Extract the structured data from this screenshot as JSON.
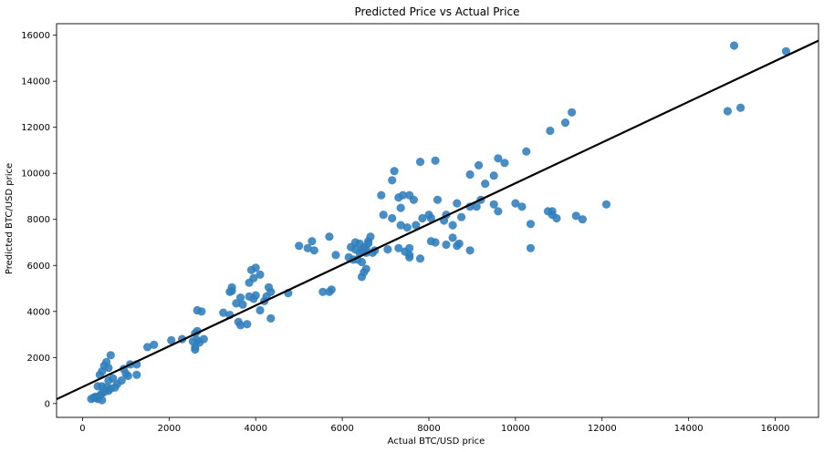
{
  "chart_data": {
    "type": "scatter",
    "title": "Predicted Price vs Actual Price",
    "xlabel": "Actual BTC/USD price",
    "ylabel": "Predicted BTC/USD price",
    "xlim": [
      -600,
      17000
    ],
    "ylim": [
      -600,
      16500
    ],
    "xticks": [
      0,
      2000,
      4000,
      6000,
      8000,
      10000,
      12000,
      14000,
      16000
    ],
    "yticks": [
      0,
      2000,
      4000,
      6000,
      8000,
      10000,
      12000,
      14000,
      16000
    ],
    "grid": false,
    "point_color": "#2f7ebc",
    "line_color": "#000000",
    "regression_line": {
      "slope": 0.885,
      "intercept": 720
    },
    "points": [
      [
        16250,
        15300
      ],
      [
        15050,
        15550
      ],
      [
        15200,
        12850
      ],
      [
        14900,
        12700
      ],
      [
        11300,
        12650
      ],
      [
        11150,
        12200
      ],
      [
        10800,
        11850
      ],
      [
        10250,
        10950
      ],
      [
        9600,
        10650
      ],
      [
        9750,
        10450
      ],
      [
        9150,
        10350
      ],
      [
        8950,
        9950
      ],
      [
        9500,
        9900
      ],
      [
        9300,
        9550
      ],
      [
        7800,
        10500
      ],
      [
        8150,
        10550
      ],
      [
        7200,
        10100
      ],
      [
        7150,
        9700
      ],
      [
        7400,
        9050
      ],
      [
        7550,
        9050
      ],
      [
        6900,
        9050
      ],
      [
        7300,
        8950
      ],
      [
        7650,
        8850
      ],
      [
        8200,
        8850
      ],
      [
        8650,
        8700
      ],
      [
        9200,
        8850
      ],
      [
        9100,
        8550
      ],
      [
        8950,
        8550
      ],
      [
        9500,
        8650
      ],
      [
        10000,
        8700
      ],
      [
        10150,
        8550
      ],
      [
        12100,
        8650
      ],
      [
        10750,
        8350
      ],
      [
        10850,
        8350
      ],
      [
        9600,
        8350
      ],
      [
        8400,
        8200
      ],
      [
        8750,
        8100
      ],
      [
        6950,
        8200
      ],
      [
        7150,
        8050
      ],
      [
        7350,
        8500
      ],
      [
        7850,
        8050
      ],
      [
        8000,
        8200
      ],
      [
        8350,
        7950
      ],
      [
        8050,
        8050
      ],
      [
        8550,
        7750
      ],
      [
        7700,
        7750
      ],
      [
        7500,
        7650
      ],
      [
        7350,
        7750
      ],
      [
        11400,
        8150
      ],
      [
        11550,
        8000
      ],
      [
        10950,
        8050
      ],
      [
        10850,
        8200
      ],
      [
        10350,
        7800
      ],
      [
        5700,
        7250
      ],
      [
        6650,
        7250
      ],
      [
        5300,
        7050
      ],
      [
        5200,
        6750
      ],
      [
        5000,
        6850
      ],
      [
        5350,
        6650
      ],
      [
        6300,
        7000
      ],
      [
        6400,
        6950
      ],
      [
        6500,
        6800
      ],
      [
        6200,
        6800
      ],
      [
        6300,
        6700
      ],
      [
        6450,
        6650
      ],
      [
        6550,
        6550
      ],
      [
        6600,
        6950
      ],
      [
        6750,
        6650
      ],
      [
        7050,
        6700
      ],
      [
        7300,
        6750
      ],
      [
        7450,
        6600
      ],
      [
        7550,
        6450
      ],
      [
        7550,
        6350
      ],
      [
        7800,
        6300
      ],
      [
        8050,
        7050
      ],
      [
        8150,
        7000
      ],
      [
        8400,
        6900
      ],
      [
        8550,
        7200
      ],
      [
        8650,
        6850
      ],
      [
        8700,
        6950
      ],
      [
        8950,
        6650
      ],
      [
        10350,
        6750
      ],
      [
        7550,
        6750
      ],
      [
        5850,
        6450
      ],
      [
        6150,
        6350
      ],
      [
        6250,
        6250
      ],
      [
        6350,
        6250
      ],
      [
        6450,
        6150
      ],
      [
        6550,
        5850
      ],
      [
        6500,
        5700
      ],
      [
        6450,
        5500
      ],
      [
        6550,
        6700
      ],
      [
        6400,
        6550
      ],
      [
        6700,
        6550
      ],
      [
        6600,
        7050
      ],
      [
        5550,
        4850
      ],
      [
        5750,
        4950
      ],
      [
        5700,
        4850
      ],
      [
        4750,
        4800
      ],
      [
        4000,
        5900
      ],
      [
        3900,
        5800
      ],
      [
        4100,
        5600
      ],
      [
        3950,
        5450
      ],
      [
        3850,
        5250
      ],
      [
        4300,
        5050
      ],
      [
        3450,
        4900
      ],
      [
        3450,
        5050
      ],
      [
        3400,
        4850
      ],
      [
        4350,
        4850
      ],
      [
        4250,
        4650
      ],
      [
        4000,
        4700
      ],
      [
        3850,
        4650
      ],
      [
        3650,
        4600
      ],
      [
        3950,
        4550
      ],
      [
        4200,
        4450
      ],
      [
        3550,
        4350
      ],
      [
        3700,
        4300
      ],
      [
        2650,
        4050
      ],
      [
        2750,
        4000
      ],
      [
        3250,
        3950
      ],
      [
        3400,
        3850
      ],
      [
        4100,
        4050
      ],
      [
        4350,
        3700
      ],
      [
        3600,
        3550
      ],
      [
        3650,
        3400
      ],
      [
        3800,
        3450
      ],
      [
        2600,
        3050
      ],
      [
        2650,
        3150
      ],
      [
        2800,
        2800
      ],
      [
        2650,
        2750
      ],
      [
        2550,
        2700
      ],
      [
        2300,
        2800
      ],
      [
        2050,
        2750
      ],
      [
        2700,
        2650
      ],
      [
        2600,
        2450
      ],
      [
        2600,
        2350
      ],
      [
        1650,
        2550
      ],
      [
        1500,
        2450
      ],
      [
        650,
        2100
      ],
      [
        550,
        1800
      ],
      [
        500,
        1650
      ],
      [
        600,
        1550
      ],
      [
        1100,
        1700
      ],
      [
        1250,
        1700
      ],
      [
        950,
        1500
      ],
      [
        450,
        1400
      ],
      [
        400,
        1250
      ],
      [
        1000,
        1300
      ],
      [
        1250,
        1250
      ],
      [
        1050,
        1200
      ],
      [
        900,
        1000
      ],
      [
        700,
        1100
      ],
      [
        600,
        1000
      ],
      [
        800,
        850
      ],
      [
        750,
        700
      ],
      [
        650,
        650
      ],
      [
        550,
        700
      ],
      [
        450,
        750
      ],
      [
        350,
        750
      ],
      [
        500,
        500
      ],
      [
        600,
        550
      ],
      [
        450,
        450
      ],
      [
        400,
        350
      ],
      [
        300,
        300
      ],
      [
        250,
        250
      ],
      [
        350,
        200
      ],
      [
        450,
        150
      ],
      [
        300,
        250
      ],
      [
        200,
        200
      ]
    ]
  }
}
